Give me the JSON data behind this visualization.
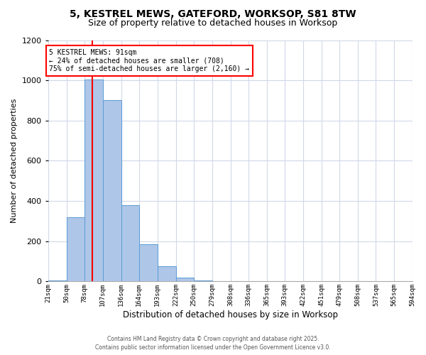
{
  "title_line1": "5, KESTREL MEWS, GATEFORD, WORKSOP, S81 8TW",
  "title_line2": "Size of property relative to detached houses in Worksop",
  "xlabel": "Distribution of detached houses by size in Worksop",
  "ylabel": "Number of detached properties",
  "bar_lefts": [
    21,
    50,
    78,
    107,
    136,
    164,
    193,
    222,
    250,
    279,
    308,
    336,
    365,
    393,
    422,
    451,
    479,
    508,
    537,
    565
  ],
  "bar_widths": [
    29,
    28,
    29,
    29,
    28,
    29,
    29,
    28,
    29,
    29,
    28,
    29,
    28,
    29,
    29,
    28,
    29,
    29,
    28,
    29
  ],
  "bar_heights": [
    5,
    320,
    1005,
    900,
    380,
    185,
    75,
    20,
    5,
    0,
    0,
    0,
    0,
    0,
    0,
    0,
    0,
    0,
    0,
    0
  ],
  "bar_color": "#aec6e8",
  "bar_edgecolor": "#5b9bd5",
  "annotation_line1": "5 KESTREL MEWS: 91sqm",
  "annotation_line2": "← 24% of detached houses are smaller (708)",
  "annotation_line3": "75% of semi-detached houses are larger (2,160) →",
  "red_line_x": 91,
  "xlim_left": 21,
  "xlim_right": 594,
  "ylim": [
    0,
    1200
  ],
  "yticks": [
    0,
    200,
    400,
    600,
    800,
    1000,
    1200
  ],
  "xtick_positions": [
    21,
    50,
    78,
    107,
    136,
    164,
    193,
    222,
    250,
    279,
    308,
    336,
    365,
    393,
    422,
    451,
    479,
    508,
    537,
    565,
    594
  ],
  "xtick_labels": [
    "21sqm",
    "50sqm",
    "78sqm",
    "107sqm",
    "136sqm",
    "164sqm",
    "193sqm",
    "222sqm",
    "250sqm",
    "279sqm",
    "308sqm",
    "336sqm",
    "365sqm",
    "393sqm",
    "422sqm",
    "451sqm",
    "479sqm",
    "508sqm",
    "537sqm",
    "565sqm",
    "594sqm"
  ],
  "footer_line1": "Contains HM Land Registry data © Crown copyright and database right 2025.",
  "footer_line2": "Contains public sector information licensed under the Open Government Licence v3.0.",
  "bg_color": "#ffffff",
  "grid_color": "#d0d8e8"
}
